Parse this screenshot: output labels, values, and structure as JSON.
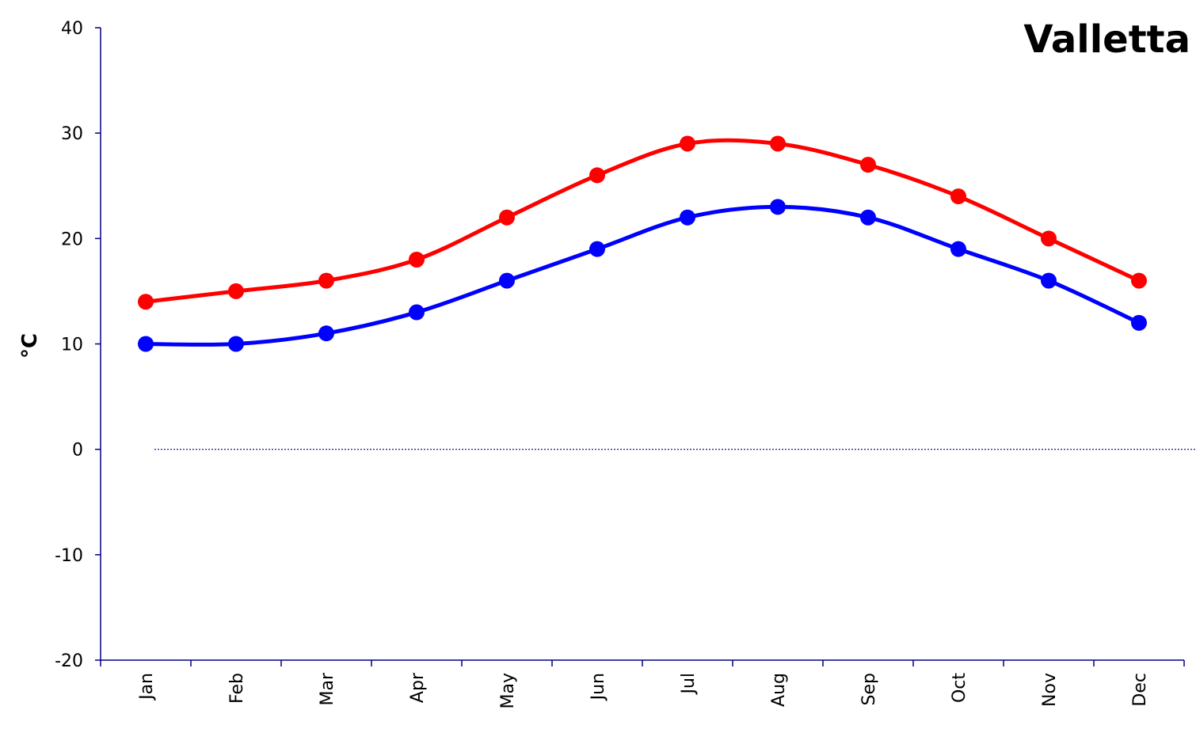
{
  "chart_data": {
    "type": "line",
    "title": "Valletta",
    "xlabel": "",
    "ylabel": "°C",
    "categories": [
      "Jan",
      "Feb",
      "Mar",
      "Apr",
      "May",
      "Jun",
      "Jul",
      "Aug",
      "Sep",
      "Oct",
      "Nov",
      "Dec"
    ],
    "ylim": [
      -20,
      40
    ],
    "yticks": [
      "-20",
      "-10",
      "0",
      "10",
      "20",
      "30",
      "40"
    ],
    "grid": false,
    "legend": "none",
    "zero_line": "dotted",
    "series": [
      {
        "color": "#ff0000",
        "values": [
          14,
          15,
          16,
          18,
          22,
          26,
          29,
          29,
          27,
          24,
          20,
          16
        ]
      },
      {
        "color": "#0000ff",
        "values": [
          10,
          10,
          11,
          13,
          16,
          19,
          22,
          23,
          22,
          19,
          16,
          12
        ]
      }
    ]
  }
}
